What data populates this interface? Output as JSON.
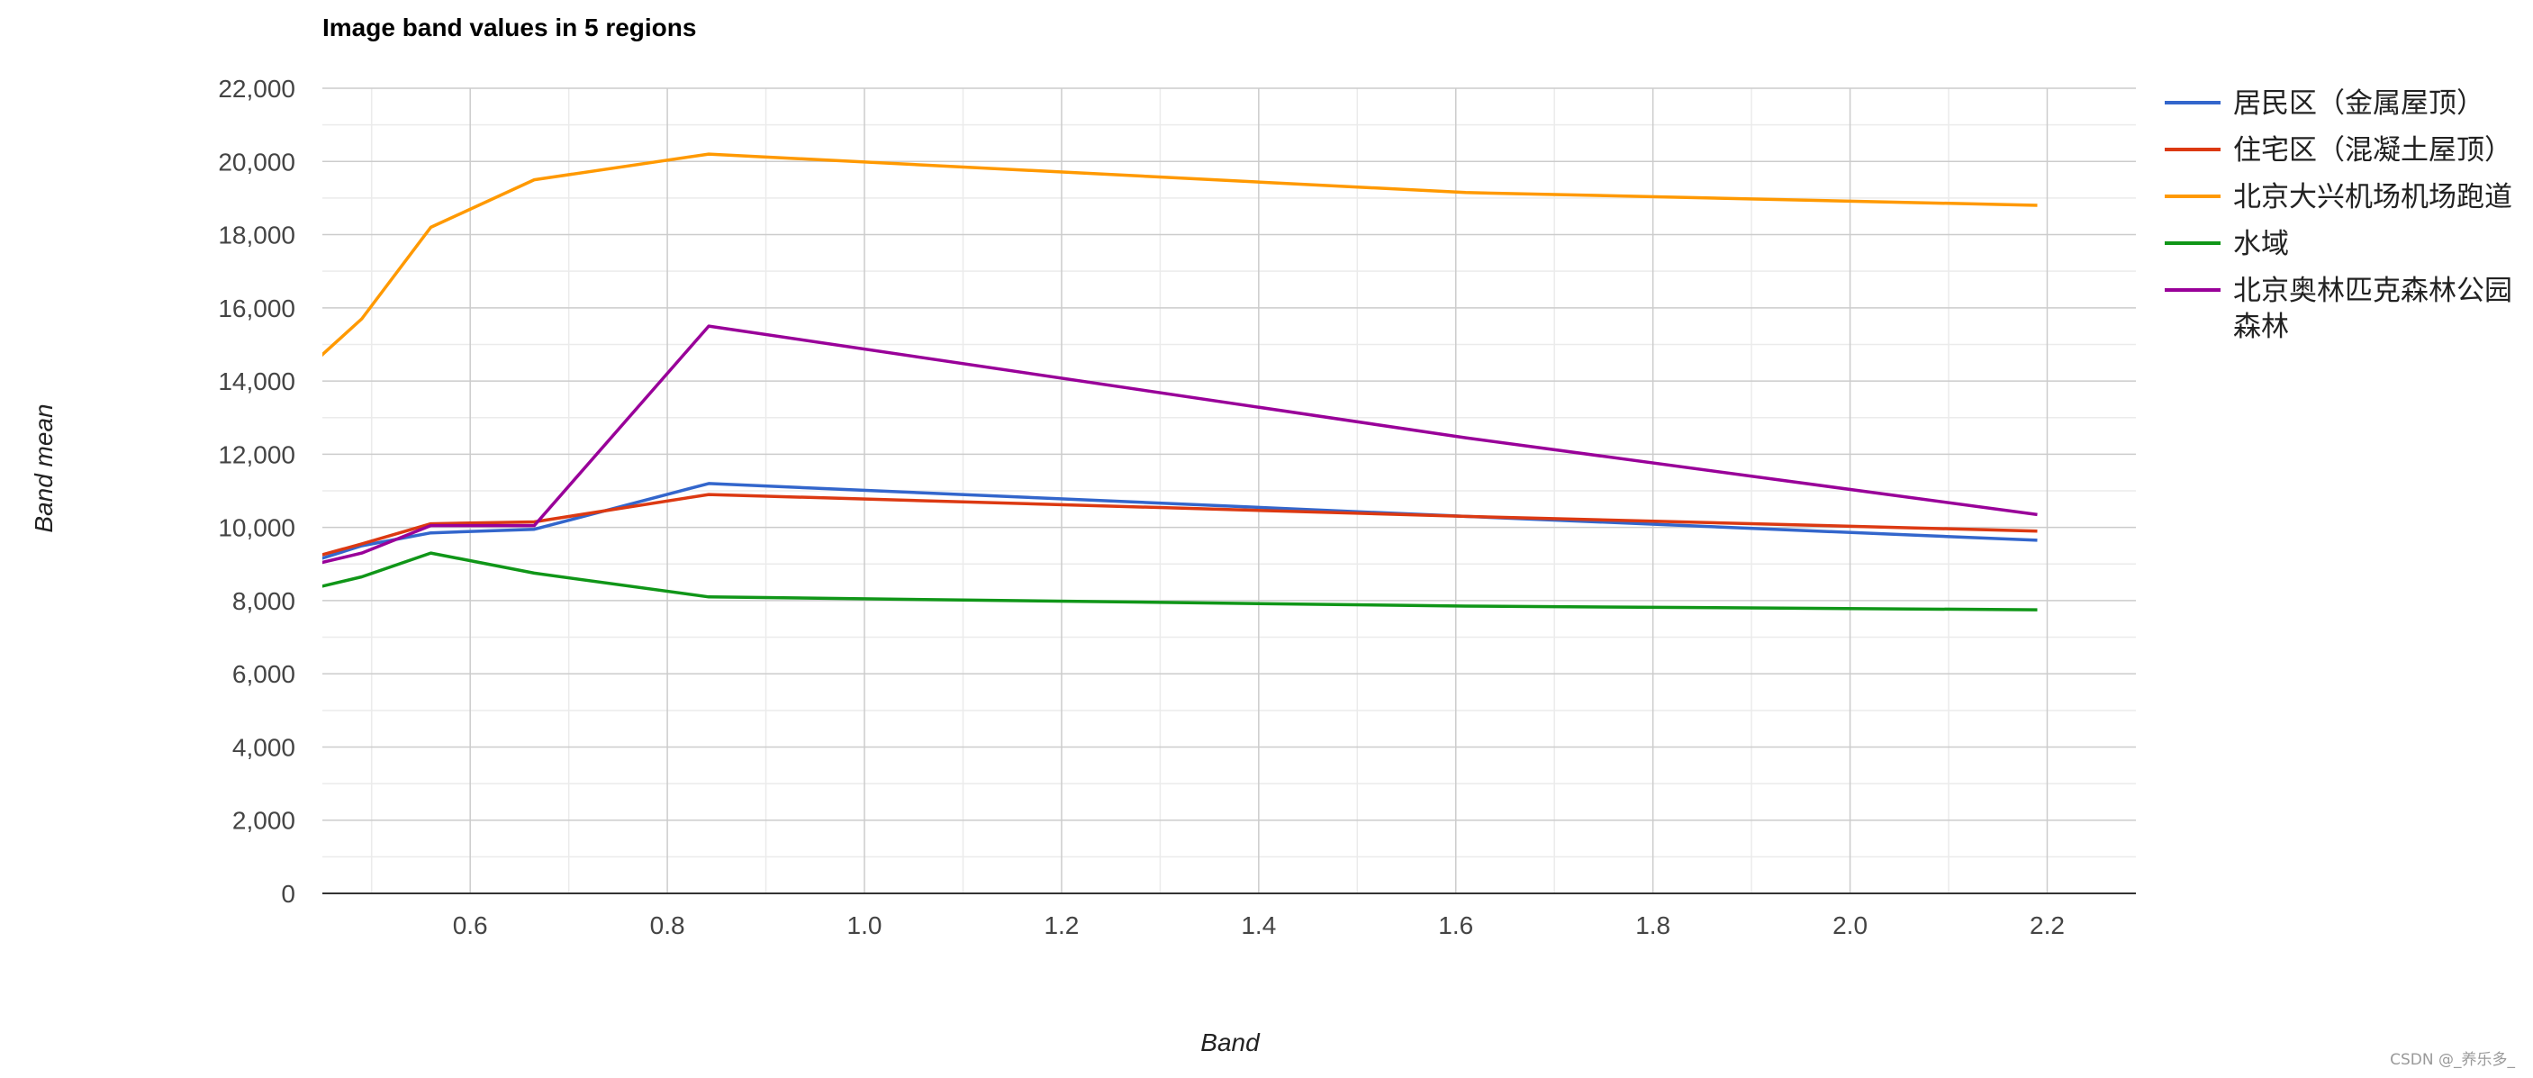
{
  "chart_data": {
    "type": "line",
    "title": "Image band values in 5 regions",
    "xlabel": "Band",
    "ylabel": "Band mean",
    "xlim": [
      0.45,
      2.29
    ],
    "ylim": [
      0,
      22000
    ],
    "x_ticks": [
      0.6,
      0.8,
      1.0,
      1.2,
      1.4,
      1.6,
      1.8,
      2.0,
      2.2
    ],
    "x_tick_labels": [
      "0.6",
      "0.8",
      "1.0",
      "1.2",
      "1.4",
      "1.6",
      "1.8",
      "2.0",
      "2.2"
    ],
    "y_ticks": [
      0,
      2000,
      4000,
      6000,
      8000,
      10000,
      12000,
      14000,
      16000,
      18000,
      20000,
      22000
    ],
    "y_tick_labels": [
      "0",
      "2,000",
      "4,000",
      "6,000",
      "8,000",
      "10,000",
      "12,000",
      "14,000",
      "16,000",
      "18,000",
      "20,000",
      "22,000"
    ],
    "grid": true,
    "legend_position": "right",
    "x": [
      0.443,
      0.49,
      0.56,
      0.665,
      0.842,
      1.61,
      2.19
    ],
    "series": [
      {
        "name": "居民区（金属屋顶）",
        "color": "#3366cc",
        "values": [
          9100,
          9500,
          9850,
          9950,
          11200,
          10300,
          9650
        ]
      },
      {
        "name": "住宅区（混凝土屋顶）",
        "color": "#dc3912",
        "values": [
          9200,
          9550,
          10100,
          10150,
          10900,
          10300,
          9900
        ]
      },
      {
        "name": "北京大兴机场机场跑道",
        "color": "#ff9900",
        "values": [
          14550,
          15700,
          18200,
          19500,
          20200,
          19150,
          18800
        ]
      },
      {
        "name": "水域",
        "color": "#109618",
        "values": [
          8350,
          8650,
          9300,
          8750,
          8100,
          7850,
          7750
        ]
      },
      {
        "name": "北京奥林匹克森林公园森林",
        "legend_lines": [
          "北京奥林匹克森林公园",
          "森林"
        ],
        "color": "#990099",
        "values": [
          9000,
          9300,
          10050,
          10050,
          15500,
          12450,
          10350
        ]
      }
    ]
  },
  "watermark": "CSDN @_养乐多_"
}
